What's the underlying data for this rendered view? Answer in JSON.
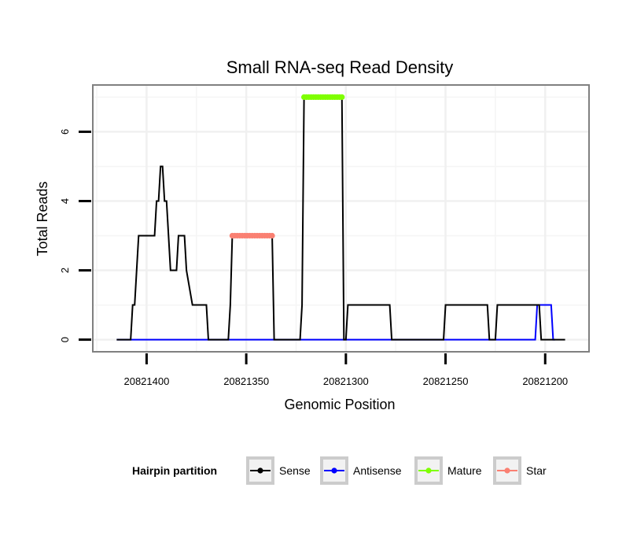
{
  "chart_data": {
    "type": "line",
    "title": "Small RNA-seq Read Density",
    "xlabel": "Genomic Position",
    "ylabel": "Total Reads",
    "x_reversed": true,
    "xlim": [
      20821427,
      20821178
    ],
    "ylim": [
      -0.35,
      7.35
    ],
    "x_ticks": [
      20821400,
      20821350,
      20821300,
      20821250,
      20821200
    ],
    "x_tick_labels": [
      "20821400",
      "20821350",
      "20821300",
      "20821250",
      "20821200"
    ],
    "y_ticks": [
      0,
      2,
      4,
      6
    ],
    "y_tick_labels": [
      "0",
      "2",
      "4",
      "6"
    ],
    "grid": true,
    "series": [
      {
        "name": "Sense",
        "color": "#000000",
        "x": [
          20821415,
          20821408,
          20821407,
          20821406,
          20821405,
          20821404,
          20821396,
          20821395,
          20821394,
          20821393,
          20821392,
          20821391,
          20821390,
          20821389,
          20821388,
          20821385,
          20821384,
          20821381,
          20821380,
          20821377,
          20821376,
          20821370,
          20821369,
          20821364,
          20821363,
          20821359,
          20821358,
          20821357,
          20821356,
          20821337,
          20821336,
          20821324,
          20821323,
          20821322,
          20821321,
          20821302,
          20821301,
          20821300,
          20821299,
          20821278,
          20821277,
          20821251,
          20821250,
          20821229,
          20821228,
          20821227,
          20821226,
          20821225,
          20821224,
          20821203,
          20821202,
          20821201,
          20821200,
          20821190
        ],
        "y": [
          0,
          0,
          1,
          1,
          2,
          3,
          3,
          4,
          4,
          5,
          5,
          4,
          4,
          3,
          2,
          2,
          3,
          3,
          2,
          1,
          1,
          1,
          0,
          0,
          0,
          0,
          1,
          3,
          3,
          3,
          0,
          0,
          0,
          1,
          7,
          7,
          0,
          0,
          1,
          1,
          0,
          0,
          1,
          1,
          0,
          0,
          0,
          0,
          1,
          1,
          0,
          0,
          0,
          0
        ]
      },
      {
        "name": "Antisense",
        "color": "#0000ff",
        "x": [
          20821415,
          20821205,
          20821204,
          20821203,
          20821197,
          20821196,
          20821195
        ],
        "y": [
          0,
          0,
          1,
          1,
          1,
          0,
          0
        ]
      },
      {
        "name": "Mature",
        "color": "#7fff00",
        "x": [
          20821321,
          20821302
        ],
        "y": [
          7,
          7
        ]
      },
      {
        "name": "Star",
        "color": "#fa8072",
        "x": [
          20821357,
          20821337
        ],
        "y": [
          3,
          3
        ]
      }
    ],
    "legend": {
      "title": "Hairpin partition",
      "position": "bottom",
      "entries": [
        {
          "label": "Sense",
          "color": "#000000"
        },
        {
          "label": "Antisense",
          "color": "#0000ff"
        },
        {
          "label": "Mature",
          "color": "#7fff00"
        },
        {
          "label": "Star",
          "color": "#fa8072"
        }
      ]
    }
  }
}
